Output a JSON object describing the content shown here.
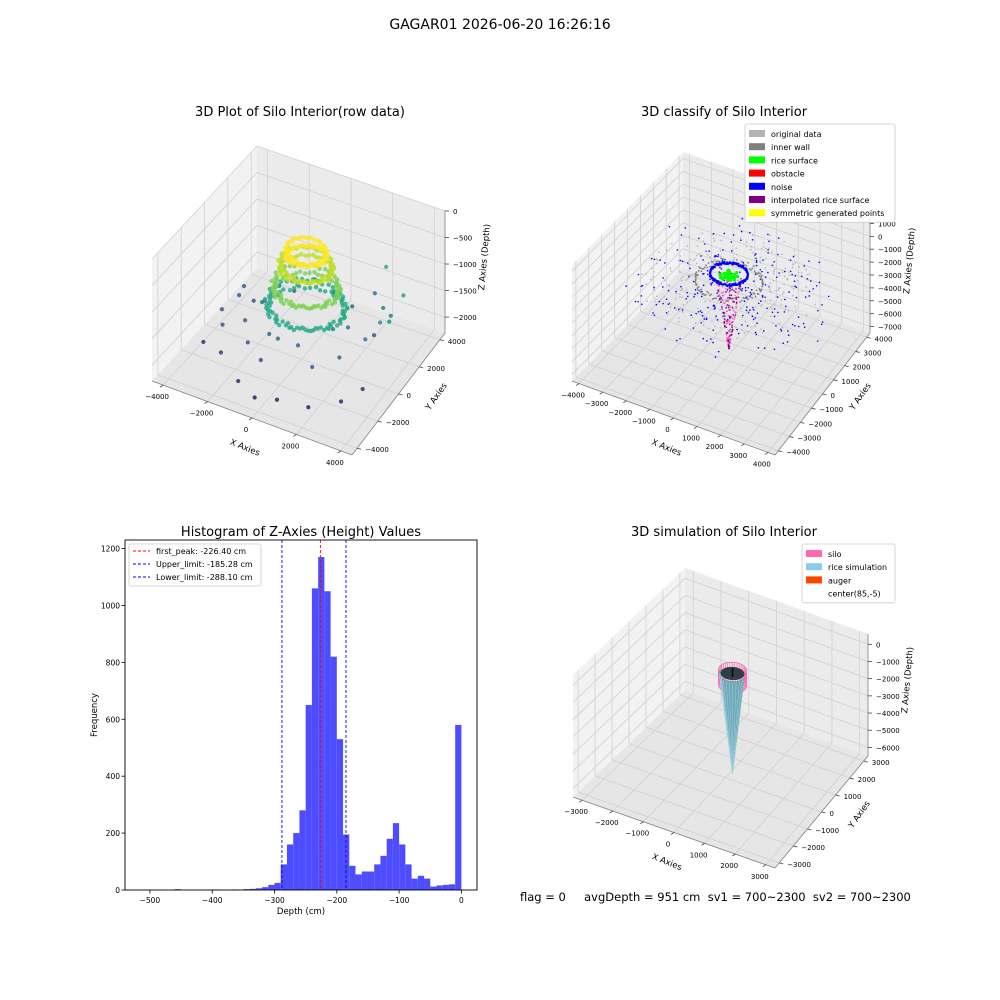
{
  "figure": {
    "title": "GAGAR01 2026-06-20 16:26:16",
    "info_text": "flag = 0     avgDepth = 951 cm  sv1 = 700~2300  sv2 = 700~2300"
  },
  "chart_data": [
    {
      "type": "scatter",
      "projection": "3d",
      "title": "3D Plot of Silo Interior(row data)",
      "xlabel": "X Axies",
      "ylabel": "Y Axies",
      "zlabel": "Z Axies (Depth)",
      "xticks": [
        -4000,
        -2000,
        0,
        2000,
        4000
      ],
      "yticks": [
        -4000,
        -2000,
        0,
        2000,
        4000
      ],
      "zticks": [
        0,
        -500,
        -1000,
        -1500,
        -2000
      ],
      "xlim": [
        -4500,
        4500
      ],
      "ylim": [
        -4500,
        4500
      ],
      "zlim": [
        -2300,
        0
      ],
      "colormap": "viridis",
      "points": [
        [
          3300,
          200,
          -1100
        ],
        [
          3500,
          600,
          -1150
        ],
        [
          3000,
          -500,
          -1300
        ],
        [
          2700,
          1600,
          -1250
        ],
        [
          1800,
          2600,
          -1350
        ],
        [
          3200,
          1300,
          -1250
        ],
        [
          -3400,
          -600,
          -1700
        ],
        [
          -3100,
          300,
          -1600
        ],
        [
          -2900,
          -1500,
          -1700
        ],
        [
          -2300,
          2200,
          -1750
        ],
        [
          -1200,
          3200,
          -1700
        ],
        [
          -3300,
          1100,
          -1650
        ],
        [
          -2500,
          -2400,
          -1950
        ],
        [
          -1200,
          -3400,
          -2050
        ],
        [
          600,
          -3500,
          -2100
        ],
        [
          1800,
          -3100,
          -2150
        ],
        [
          2800,
          -2200,
          -2100
        ],
        [
          3300,
          -1300,
          -2000
        ],
        [
          -3500,
          -2000,
          -2000
        ],
        [
          -300,
          -3700,
          -2150
        ],
        [
          2500,
          1200,
          -1700
        ],
        [
          -2600,
          600,
          -1700
        ],
        [
          1500,
          -2200,
          -1650
        ],
        [
          -1500,
          -2000,
          -1700
        ],
        [
          0,
          2600,
          -1600
        ],
        [
          -600,
          -2600,
          -1750
        ],
        [
          2200,
          -1200,
          -1600
        ],
        [
          -2200,
          -900,
          -1650
        ],
        [
          1200,
          1800,
          -1500
        ],
        [
          -1300,
          1600,
          -1550
        ],
        [
          600,
          -1700,
          -1500
        ],
        [
          -800,
          -1500,
          -1550
        ],
        [
          1800,
          300,
          -1450
        ],
        [
          -1900,
          200,
          -1500
        ],
        [
          300,
          1900,
          -1400
        ],
        [
          -200,
          -1900,
          -1450
        ],
        [
          1600,
          -600,
          -1300
        ],
        [
          -1700,
          -400,
          -1350
        ],
        [
          900,
          1200,
          -1200
        ],
        [
          -900,
          1100,
          -1250
        ],
        [
          2100,
          3000,
          -900
        ],
        [
          3400,
          2000,
          -1000
        ]
      ],
      "rings": [
        {
          "z": -1250,
          "radius": 1550,
          "color": "#22a884"
        },
        {
          "z": -900,
          "radius": 1300,
          "color": "#7ad151"
        },
        {
          "z": -500,
          "radius": 1050,
          "color": "#bddf26"
        },
        {
          "z": -250,
          "radius": 800,
          "color": "#fde725"
        }
      ]
    },
    {
      "type": "scatter",
      "projection": "3d",
      "title": "3D classify of Silo Interior",
      "xlabel": "X Axies",
      "ylabel": "Y Axies",
      "zlabel": "Z Axies (Depth)",
      "xticks": [
        -4000,
        -3000,
        -2000,
        -1000,
        0,
        1000,
        2000,
        3000,
        4000
      ],
      "yticks": [
        -4000,
        -3000,
        -2000,
        -1000,
        0,
        1000,
        2000,
        3000,
        4000
      ],
      "zticks": [
        1000,
        0,
        -1000,
        -2000,
        -3000,
        -4000,
        -5000,
        -6000,
        -7000
      ],
      "xlim": [
        -4300,
        4300
      ],
      "ylim": [
        -4300,
        4300
      ],
      "zlim": [
        -7500,
        1500
      ],
      "legend_position": "upper right",
      "legend": [
        {
          "label": "original data",
          "color": "#b3b3b3"
        },
        {
          "label": "inner wall",
          "color": "#808080"
        },
        {
          "label": "rice surface",
          "color": "#00ff00"
        },
        {
          "label": "obstacle",
          "color": "#ff0000"
        },
        {
          "label": "noise",
          "color": "#0000ff"
        },
        {
          "label": "interpolated rice surface",
          "color": "#800080"
        },
        {
          "label": "symmetric generated points",
          "color": "#ffff00"
        }
      ]
    },
    {
      "type": "bar",
      "title": "Histogram of Z-Axies (Height) Values",
      "xlabel": "Depth (cm)",
      "ylabel": "Frequency",
      "xlim": [
        -540,
        25
      ],
      "ylim": [
        0,
        1230
      ],
      "xticks": [
        -500,
        -400,
        -300,
        -200,
        -100,
        0
      ],
      "yticks": [
        0,
        200,
        400,
        600,
        800,
        1000,
        1200
      ],
      "bar_color": "#4d4dff",
      "bin_width": 10,
      "bins": [
        {
          "x": -460,
          "count": 3
        },
        {
          "x": -400,
          "count": 2
        },
        {
          "x": -370,
          "count": 2
        },
        {
          "x": -350,
          "count": 3
        },
        {
          "x": -340,
          "count": 4
        },
        {
          "x": -330,
          "count": 6
        },
        {
          "x": -320,
          "count": 10
        },
        {
          "x": -310,
          "count": 18
        },
        {
          "x": -300,
          "count": 25
        },
        {
          "x": -290,
          "count": 90
        },
        {
          "x": -280,
          "count": 160
        },
        {
          "x": -270,
          "count": 200
        },
        {
          "x": -260,
          "count": 280
        },
        {
          "x": -250,
          "count": 650
        },
        {
          "x": -240,
          "count": 1060
        },
        {
          "x": -230,
          "count": 1170
        },
        {
          "x": -220,
          "count": 1050
        },
        {
          "x": -210,
          "count": 820
        },
        {
          "x": -200,
          "count": 530
        },
        {
          "x": -190,
          "count": 195
        },
        {
          "x": -180,
          "count": 85
        },
        {
          "x": -170,
          "count": 55
        },
        {
          "x": -160,
          "count": 65
        },
        {
          "x": -150,
          "count": 65
        },
        {
          "x": -140,
          "count": 90
        },
        {
          "x": -130,
          "count": 120
        },
        {
          "x": -120,
          "count": 180
        },
        {
          "x": -110,
          "count": 235
        },
        {
          "x": -100,
          "count": 160
        },
        {
          "x": -90,
          "count": 90
        },
        {
          "x": -80,
          "count": 40
        },
        {
          "x": -70,
          "count": 50
        },
        {
          "x": -60,
          "count": 40
        },
        {
          "x": -50,
          "count": 12
        },
        {
          "x": -40,
          "count": 16
        },
        {
          "x": -30,
          "count": 18
        },
        {
          "x": -20,
          "count": 20
        },
        {
          "x": -10,
          "count": 580
        }
      ],
      "vlines": [
        {
          "label": "first_peak: -226.40 cm",
          "x": -226.4,
          "color": "#ff0000"
        },
        {
          "label": "Upper_limit: -185.28 cm",
          "x": -185.28,
          "color": "#0000ff"
        },
        {
          "label": "Lower_limit: -288.10 cm",
          "x": -288.1,
          "color": "#0000ff"
        }
      ],
      "legend_position": "upper left"
    },
    {
      "type": "surface",
      "projection": "3d",
      "title": "3D simulation of Silo Interior",
      "xlabel": "X Axies",
      "ylabel": "Y Axies",
      "zlabel": "Z Axies (Depth)",
      "xticks": [
        -3000,
        -2000,
        -1000,
        0,
        1000,
        2000,
        3000
      ],
      "yticks": [
        -3000,
        -2000,
        -1000,
        0,
        1000,
        2000,
        3000
      ],
      "zticks": [
        0,
        -1000,
        -2000,
        -3000,
        -4000,
        -5000,
        -6000
      ],
      "xlim": [
        -3300,
        3300
      ],
      "ylim": [
        -3300,
        3300
      ],
      "zlim": [
        -6500,
        600
      ],
      "legend_position": "upper right",
      "legend": [
        {
          "label": "silo",
          "color": "#ff69b4"
        },
        {
          "label": "rice simulation",
          "color": "#87ceeb"
        },
        {
          "label": "auger",
          "color": "#ff4500"
        },
        {
          "label": "center(85,-5)",
          "color": ""
        }
      ]
    }
  ]
}
